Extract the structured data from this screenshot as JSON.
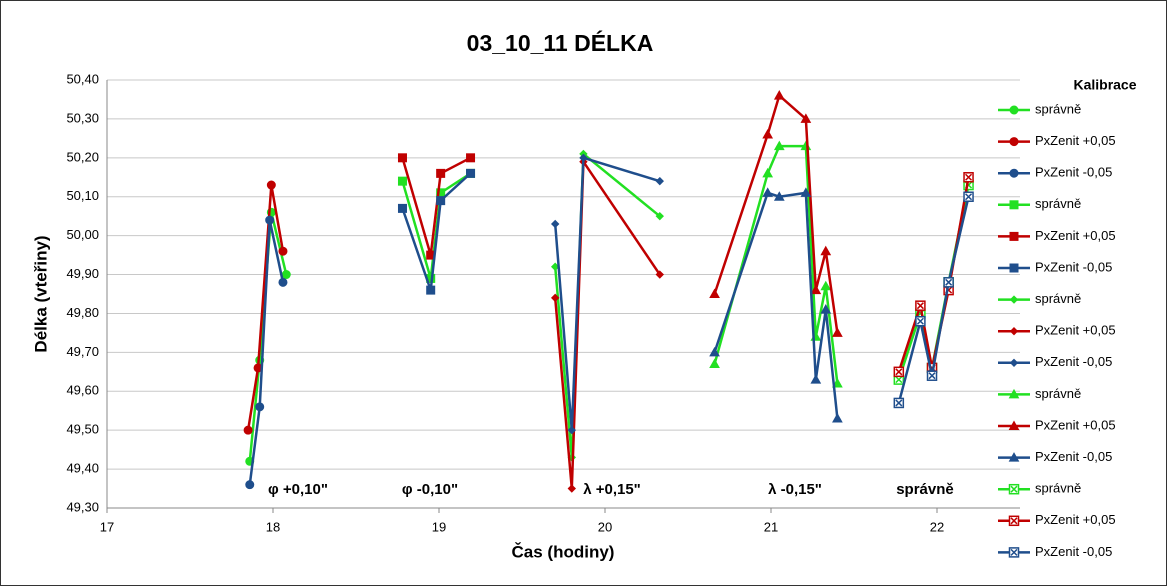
{
  "chart_data": {
    "type": "line",
    "title": "03_10_11 DÉLKA",
    "x_label": "Čas (hodiny)",
    "y_label": "Délka (vteřiny)",
    "legend_title": "Kalibrace",
    "legend_position": "right",
    "grid": true,
    "xlim": [
      17,
      22.5
    ],
    "xticks": [
      17,
      18,
      19,
      20,
      21,
      22
    ],
    "ylim": [
      49.3,
      50.4
    ],
    "yticks": [
      {
        "value": 49.3,
        "label": "49,30"
      },
      {
        "value": 49.4,
        "label": "49,40"
      },
      {
        "value": 49.5,
        "label": "49,50"
      },
      {
        "value": 49.6,
        "label": "49,60"
      },
      {
        "value": 49.7,
        "label": "49,70"
      },
      {
        "value": 49.8,
        "label": "49,80"
      },
      {
        "value": 49.9,
        "label": "49,90"
      },
      {
        "value": 50.0,
        "label": "50,00"
      },
      {
        "value": 50.1,
        "label": "50,10"
      },
      {
        "value": 50.2,
        "label": "50,20"
      },
      {
        "value": 50.3,
        "label": "50,30"
      },
      {
        "value": 50.4,
        "label": "50,40"
      }
    ],
    "annotations": [
      "φ +0,10\"",
      "φ -0,10\"",
      "λ +0,15\"",
      "λ -0,15\"",
      "správně"
    ],
    "series": [
      {
        "name": "správně",
        "color": "#22e022",
        "marker": "circle",
        "x": [
          17.86,
          17.92,
          17.99,
          18.08
        ],
        "values": [
          49.42,
          49.68,
          50.06,
          49.9
        ]
      },
      {
        "name": "PxZenit +0,05",
        "color": "#c00000",
        "marker": "circle",
        "x": [
          17.85,
          17.91,
          17.99,
          18.06
        ],
        "values": [
          49.5,
          49.66,
          50.13,
          49.96
        ]
      },
      {
        "name": "PxZenit -0,05",
        "color": "#1f4e8c",
        "marker": "circle",
        "x": [
          17.86,
          17.92,
          17.98,
          18.06
        ],
        "values": [
          49.36,
          49.56,
          50.04,
          49.88
        ]
      },
      {
        "name": "správně",
        "color": "#22e022",
        "marker": "square",
        "x": [
          18.78,
          18.95,
          19.01,
          19.19
        ],
        "values": [
          50.14,
          49.89,
          50.11,
          50.16
        ]
      },
      {
        "name": "PxZenit +0,05",
        "color": "#c00000",
        "marker": "square",
        "x": [
          18.78,
          18.95,
          19.01,
          19.19
        ],
        "values": [
          50.2,
          49.95,
          50.16,
          50.2
        ]
      },
      {
        "name": "PxZenit -0,05",
        "color": "#1f4e8c",
        "marker": "square",
        "x": [
          18.78,
          18.95,
          19.01,
          19.19
        ],
        "values": [
          50.07,
          49.86,
          50.09,
          50.16
        ]
      },
      {
        "name": "správně",
        "color": "#22e022",
        "marker": "diamond",
        "x": [
          19.7,
          19.8,
          19.87,
          20.33
        ],
        "values": [
          49.92,
          49.43,
          50.21,
          50.05
        ]
      },
      {
        "name": "PxZenit +0,05",
        "color": "#c00000",
        "marker": "diamond",
        "x": [
          19.7,
          19.8,
          19.87,
          20.33
        ],
        "values": [
          49.84,
          49.35,
          50.19,
          49.9
        ]
      },
      {
        "name": "PxZenit -0,05",
        "color": "#1f4e8c",
        "marker": "diamond",
        "x": [
          19.7,
          19.8,
          19.87,
          20.33
        ],
        "values": [
          50.03,
          49.5,
          50.2,
          50.14
        ]
      },
      {
        "name": "správně",
        "color": "#22e022",
        "marker": "triangle",
        "x": [
          20.66,
          20.98,
          21.05,
          21.21,
          21.27,
          21.33,
          21.4
        ],
        "values": [
          49.67,
          50.16,
          50.23,
          50.23,
          49.74,
          49.87,
          49.62
        ]
      },
      {
        "name": "PxZenit +0,05",
        "color": "#c00000",
        "marker": "triangle",
        "x": [
          20.66,
          20.98,
          21.05,
          21.21,
          21.27,
          21.33,
          21.4
        ],
        "values": [
          49.85,
          50.26,
          50.36,
          50.3,
          49.86,
          49.96,
          49.75
        ]
      },
      {
        "name": "PxZenit -0,05",
        "color": "#1f4e8c",
        "marker": "triangle",
        "x": [
          20.66,
          20.98,
          21.05,
          21.21,
          21.27,
          21.33,
          21.4
        ],
        "values": [
          49.7,
          50.11,
          50.1,
          50.11,
          49.63,
          49.81,
          49.53
        ]
      },
      {
        "name": "správně",
        "color": "#22e022",
        "marker": "xsquare",
        "x": [
          21.77,
          21.9,
          21.97,
          22.07,
          22.19
        ],
        "values": [
          49.63,
          49.8,
          49.66,
          49.88,
          50.13
        ]
      },
      {
        "name": "PxZenit +0,05",
        "color": "#c00000",
        "marker": "xsquare",
        "x": [
          21.77,
          21.9,
          21.97,
          22.07,
          22.19
        ],
        "values": [
          49.65,
          49.82,
          49.66,
          49.86,
          50.15
        ]
      },
      {
        "name": "PxZenit -0,05",
        "color": "#1f4e8c",
        "marker": "xsquare",
        "x": [
          21.77,
          21.9,
          21.97,
          22.07,
          22.19
        ],
        "values": [
          49.57,
          49.78,
          49.64,
          49.88,
          50.1
        ]
      }
    ]
  }
}
